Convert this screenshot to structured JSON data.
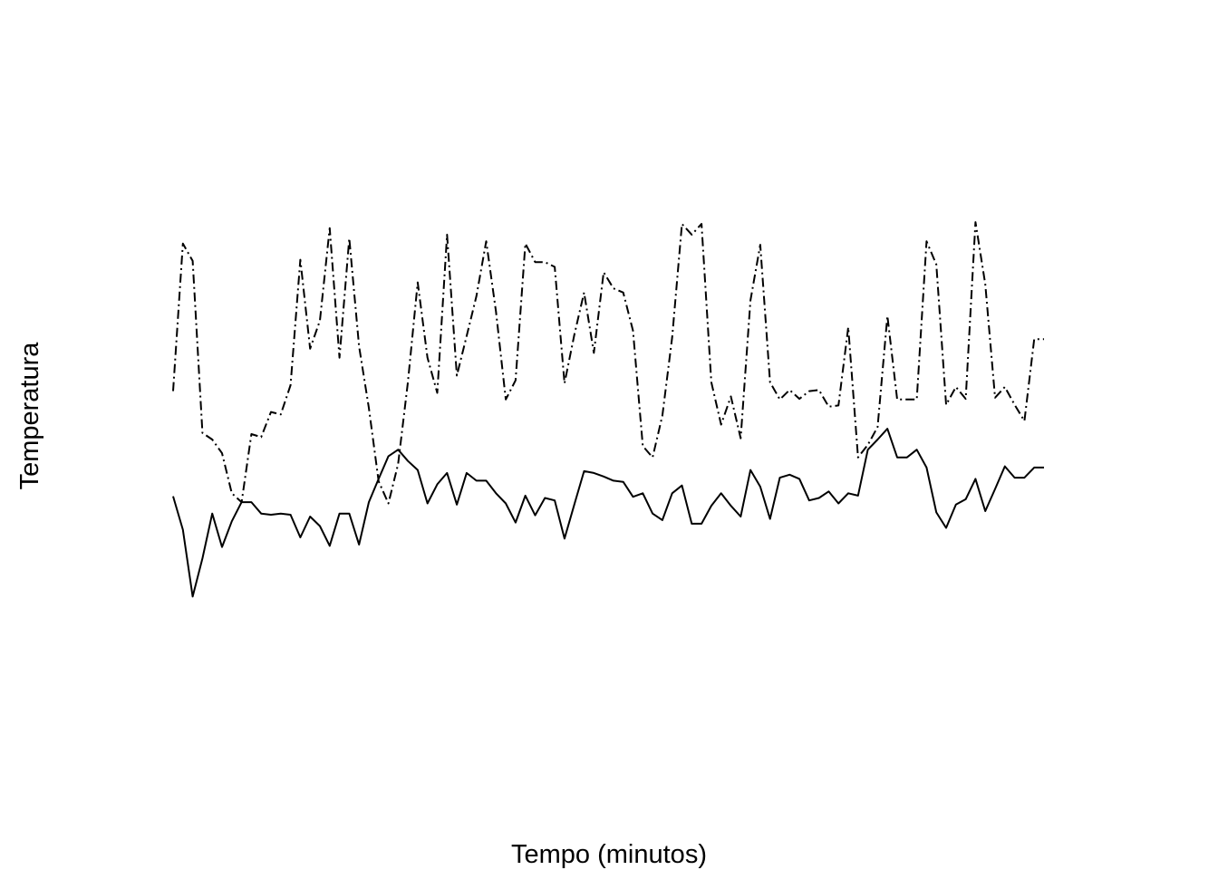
{
  "chart_data": {
    "type": "line",
    "title": "",
    "xlabel": "Tempo (minutos)",
    "ylabel": "Temperatura",
    "xlim": [
      1,
      90
    ],
    "ylim": [
      0,
      100
    ],
    "grid": false,
    "axes_visible": false,
    "x": [
      1,
      2,
      3,
      4,
      5,
      6,
      7,
      8,
      9,
      10,
      11,
      12,
      13,
      14,
      15,
      16,
      17,
      18,
      19,
      20,
      21,
      22,
      23,
      24,
      25,
      26,
      27,
      28,
      29,
      30,
      31,
      32,
      33,
      34,
      35,
      36,
      37,
      38,
      39,
      40,
      41,
      42,
      43,
      44,
      45,
      46,
      47,
      48,
      49,
      50,
      51,
      52,
      53,
      54,
      55,
      56,
      57,
      58,
      59,
      60,
      61,
      62,
      63,
      64,
      65,
      66,
      67,
      68,
      69,
      70,
      71,
      72,
      73,
      74,
      75,
      76,
      77,
      78,
      79,
      80,
      81,
      82,
      83,
      84,
      85,
      86,
      87,
      88,
      89,
      90
    ],
    "series": [
      {
        "style": "solid",
        "color": "#000000",
        "values": [
          37.7,
          32.1,
          20.9,
          27.3,
          34.8,
          29.2,
          33.5,
          36.7,
          36.7,
          34.8,
          34.6,
          34.8,
          34.6,
          30.8,
          34.3,
          32.7,
          29.4,
          34.8,
          34.8,
          29.6,
          36.7,
          40.6,
          44.4,
          45.5,
          43.6,
          42.1,
          36.5,
          39.7,
          41.6,
          36.3,
          41.6,
          40.3,
          40.3,
          38.2,
          36.5,
          33.3,
          37.8,
          34.5,
          37.4,
          37.0,
          30.6,
          36.3,
          41.9,
          41.6,
          41.0,
          40.3,
          40.1,
          37.6,
          38.2,
          34.8,
          33.7,
          38.2,
          39.5,
          33.1,
          33.1,
          36.1,
          38.2,
          36.1,
          34.3,
          42.1,
          39.3,
          33.9,
          40.8,
          41.3,
          40.6,
          37.0,
          37.4,
          38.5,
          36.5,
          38.2,
          37.8,
          45.5,
          47.2,
          49.0,
          44.2,
          44.2,
          45.5,
          42.5,
          35.0,
          32.4,
          36.3,
          37.2,
          40.6,
          35.2,
          38.9,
          42.7,
          40.8,
          40.8,
          42.5,
          42.5
        ]
      },
      {
        "style": "dashdot",
        "color": "#000000",
        "values": [
          55.3,
          80.0,
          77.1,
          48.3,
          47.2,
          44.9,
          38.2,
          36.7,
          48.1,
          47.6,
          51.8,
          51.4,
          56.3,
          77.3,
          62.4,
          67.1,
          82.6,
          60.9,
          80.9,
          62.8,
          52.5,
          40.2,
          36.5,
          43.1,
          56.8,
          73.5,
          60.9,
          55.0,
          81.5,
          57.9,
          64.5,
          71.2,
          80.4,
          68.6,
          53.9,
          57.1,
          80.0,
          76.9,
          76.9,
          76.1,
          56.6,
          64.7,
          71.8,
          61.7,
          75.2,
          72.5,
          71.8,
          65.4,
          46.1,
          44.2,
          51.2,
          64.3,
          83.3,
          81.5,
          83.3,
          56.8,
          49.7,
          54.4,
          47.4,
          70.5,
          79.8,
          56.8,
          53.9,
          55.5,
          54.0,
          55.3,
          55.5,
          52.7,
          52.9,
          66.0,
          44.2,
          46.3,
          49.3,
          67.9,
          53.9,
          53.9,
          53.9,
          80.4,
          76.5,
          53.0,
          56.0,
          54.0,
          83.6,
          73.2,
          54.2,
          56.0,
          53.0,
          50.3,
          64.0,
          64.0
        ]
      }
    ]
  }
}
